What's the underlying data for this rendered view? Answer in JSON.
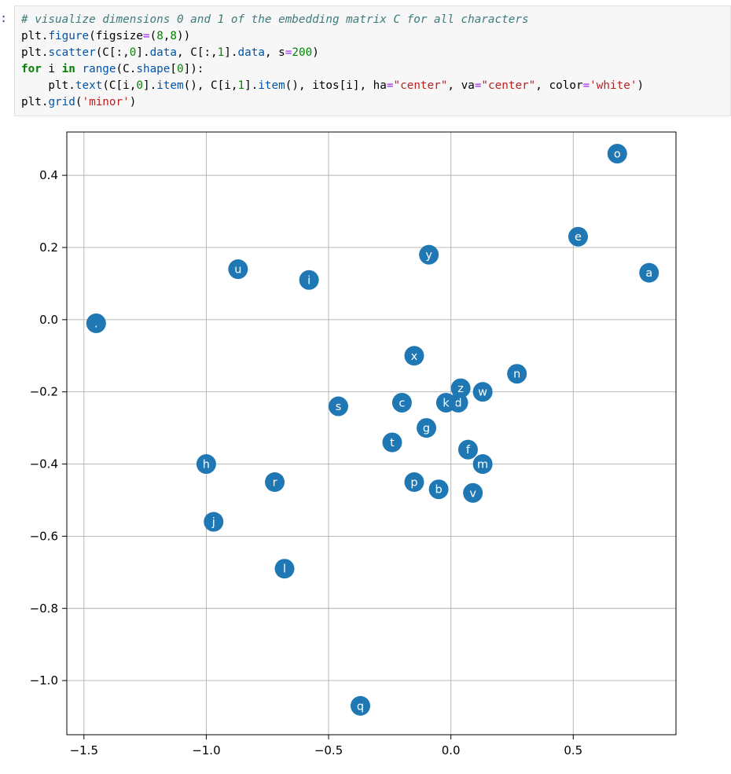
{
  "cell": {
    "prompt": ":",
    "code_lines": [
      [
        {
          "t": "c",
          "v": "# visualize dimensions 0 and 1 of the embedding matrix C for all characters"
        }
      ],
      [
        {
          "t": "n",
          "v": "plt."
        },
        {
          "t": "a",
          "v": "figure"
        },
        {
          "t": "p",
          "v": "(figsize"
        },
        {
          "t": "op",
          "v": "="
        },
        {
          "t": "p",
          "v": "("
        },
        {
          "t": "num",
          "v": "8"
        },
        {
          "t": "p",
          "v": ","
        },
        {
          "t": "num",
          "v": "8"
        },
        {
          "t": "p",
          "v": "))"
        }
      ],
      [
        {
          "t": "n",
          "v": "plt."
        },
        {
          "t": "a",
          "v": "scatter"
        },
        {
          "t": "p",
          "v": "(C[:,"
        },
        {
          "t": "num",
          "v": "0"
        },
        {
          "t": "p",
          "v": "]."
        },
        {
          "t": "a",
          "v": "data"
        },
        {
          "t": "p",
          "v": ", C[:,"
        },
        {
          "t": "num",
          "v": "1"
        },
        {
          "t": "p",
          "v": "]."
        },
        {
          "t": "a",
          "v": "data"
        },
        {
          "t": "p",
          "v": ", s"
        },
        {
          "t": "op",
          "v": "="
        },
        {
          "t": "num",
          "v": "200"
        },
        {
          "t": "p",
          "v": ")"
        }
      ],
      [
        {
          "t": "k",
          "v": "for"
        },
        {
          "t": "p",
          "v": " i "
        },
        {
          "t": "k",
          "v": "in"
        },
        {
          "t": "p",
          "v": " "
        },
        {
          "t": "a",
          "v": "range"
        },
        {
          "t": "p",
          "v": "(C."
        },
        {
          "t": "a",
          "v": "shape"
        },
        {
          "t": "p",
          "v": "["
        },
        {
          "t": "num",
          "v": "0"
        },
        {
          "t": "p",
          "v": "]):"
        }
      ],
      [
        {
          "t": "p",
          "v": "    plt."
        },
        {
          "t": "a",
          "v": "text"
        },
        {
          "t": "p",
          "v": "(C[i,"
        },
        {
          "t": "num",
          "v": "0"
        },
        {
          "t": "p",
          "v": "]."
        },
        {
          "t": "a",
          "v": "item"
        },
        {
          "t": "p",
          "v": "(), C[i,"
        },
        {
          "t": "num",
          "v": "1"
        },
        {
          "t": "p",
          "v": "]."
        },
        {
          "t": "a",
          "v": "item"
        },
        {
          "t": "p",
          "v": "(), itos[i], ha"
        },
        {
          "t": "op",
          "v": "="
        },
        {
          "t": "s",
          "v": "\"center\""
        },
        {
          "t": "p",
          "v": ", va"
        },
        {
          "t": "op",
          "v": "="
        },
        {
          "t": "s",
          "v": "\"center\""
        },
        {
          "t": "p",
          "v": ", color"
        },
        {
          "t": "op",
          "v": "="
        },
        {
          "t": "s",
          "v": "'white'"
        },
        {
          "t": "p",
          "v": ")"
        }
      ],
      [
        {
          "t": "n",
          "v": "plt."
        },
        {
          "t": "a",
          "v": "grid"
        },
        {
          "t": "p",
          "v": "("
        },
        {
          "t": "s",
          "v": "'minor'"
        },
        {
          "t": "p",
          "v": ")"
        }
      ]
    ]
  },
  "chart_data": {
    "type": "scatter",
    "title": "",
    "xlabel": "",
    "ylabel": "",
    "xlim": [
      -1.57,
      0.92
    ],
    "ylim": [
      -1.15,
      0.52
    ],
    "xticks": [
      -1.5,
      -1.0,
      -0.5,
      0.0,
      0.5
    ],
    "xtick_labels": [
      "−1.5",
      "−1.0",
      "−0.5",
      "0.0",
      "0.5"
    ],
    "yticks": [
      0.4,
      0.2,
      0.0,
      -0.2,
      -0.4,
      -0.6,
      -0.8,
      -1.0
    ],
    "ytick_labels": [
      "0.4",
      "0.2",
      "0.0",
      "−0.2",
      "−0.4",
      "−0.6",
      "−0.8",
      "−1.0"
    ],
    "grid": true,
    "marker_color": "#1f77b4",
    "label_color": "#ffffff",
    "points": [
      {
        "label": ".",
        "x": -1.45,
        "y": -0.01
      },
      {
        "label": "a",
        "x": 0.81,
        "y": 0.13
      },
      {
        "label": "b",
        "x": -0.05,
        "y": -0.47
      },
      {
        "label": "c",
        "x": -0.2,
        "y": -0.23
      },
      {
        "label": "d",
        "x": 0.03,
        "y": -0.23
      },
      {
        "label": "e",
        "x": 0.52,
        "y": 0.23
      },
      {
        "label": "f",
        "x": 0.07,
        "y": -0.36
      },
      {
        "label": "g",
        "x": -0.1,
        "y": -0.3
      },
      {
        "label": "h",
        "x": -1.0,
        "y": -0.4
      },
      {
        "label": "i",
        "x": -0.58,
        "y": 0.11
      },
      {
        "label": "j",
        "x": -0.97,
        "y": -0.56
      },
      {
        "label": "k",
        "x": -0.02,
        "y": -0.23
      },
      {
        "label": "l",
        "x": -0.68,
        "y": -0.69
      },
      {
        "label": "m",
        "x": 0.13,
        "y": -0.4
      },
      {
        "label": "n",
        "x": 0.27,
        "y": -0.15
      },
      {
        "label": "o",
        "x": 0.68,
        "y": 0.46
      },
      {
        "label": "p",
        "x": -0.15,
        "y": -0.45
      },
      {
        "label": "q",
        "x": -0.37,
        "y": -1.07
      },
      {
        "label": "r",
        "x": -0.72,
        "y": -0.45
      },
      {
        "label": "s",
        "x": -0.46,
        "y": -0.24
      },
      {
        "label": "t",
        "x": -0.24,
        "y": -0.34
      },
      {
        "label": "u",
        "x": -0.87,
        "y": 0.14
      },
      {
        "label": "v",
        "x": 0.09,
        "y": -0.48
      },
      {
        "label": "w",
        "x": 0.13,
        "y": -0.2
      },
      {
        "label": "x",
        "x": -0.15,
        "y": -0.1
      },
      {
        "label": "y",
        "x": -0.09,
        "y": 0.18
      },
      {
        "label": "z",
        "x": 0.04,
        "y": -0.19
      }
    ]
  }
}
